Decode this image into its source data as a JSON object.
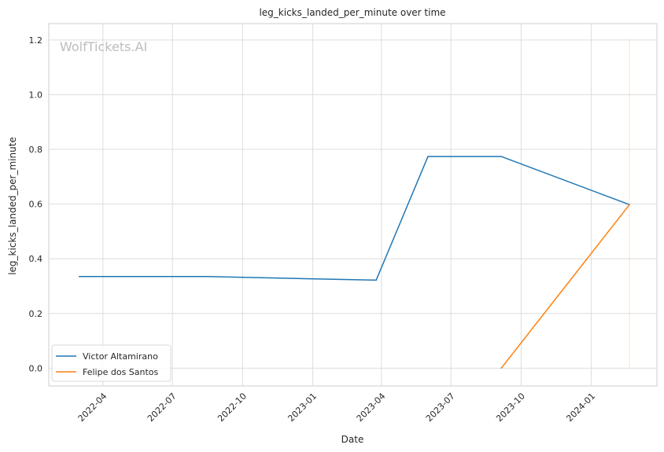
{
  "chart_data": {
    "type": "line",
    "title": "leg_kicks_landed_per_minute over time",
    "xlabel": "Date",
    "ylabel": "leg_kicks_landed_per_minute",
    "watermark": "WolfTickets.AI",
    "x_ticks": [
      "2022-04",
      "2022-07",
      "2022-10",
      "2023-01",
      "2023-04",
      "2023-07",
      "2023-10",
      "2024-01"
    ],
    "y_ticks": [
      "0.0",
      "0.2",
      "0.4",
      "0.6",
      "0.8",
      "1.0",
      "1.2"
    ],
    "xlim": [
      "2022-01-20",
      "2024-03-27"
    ],
    "ylim": [
      -0.065,
      1.26
    ],
    "grid": true,
    "legend_position": "lower-left",
    "series": [
      {
        "name": "Victor Altamirano",
        "color": "#1f77b4",
        "points": [
          {
            "x": "2022-03-01",
            "y": 0.335
          },
          {
            "x": "2022-08-15",
            "y": 0.335
          },
          {
            "x": "2023-03-25",
            "y": 0.322
          },
          {
            "x": "2023-06-01",
            "y": 0.774
          },
          {
            "x": "2023-09-05",
            "y": 0.774
          },
          {
            "x": "2024-02-20",
            "y": 0.598
          }
        ]
      },
      {
        "name": "Felipe dos Santos",
        "color": "#ff7f0e",
        "points": [
          {
            "x": "2023-09-05",
            "y": 0.0
          },
          {
            "x": "2024-02-20",
            "y": 0.598
          }
        ]
      }
    ],
    "annotations": [
      {
        "type": "vertical-line",
        "x": "2024-02-20",
        "y_from": 0.0,
        "y_to": 1.2,
        "color": "#ff7f0e",
        "opacity": 0.25
      }
    ]
  }
}
